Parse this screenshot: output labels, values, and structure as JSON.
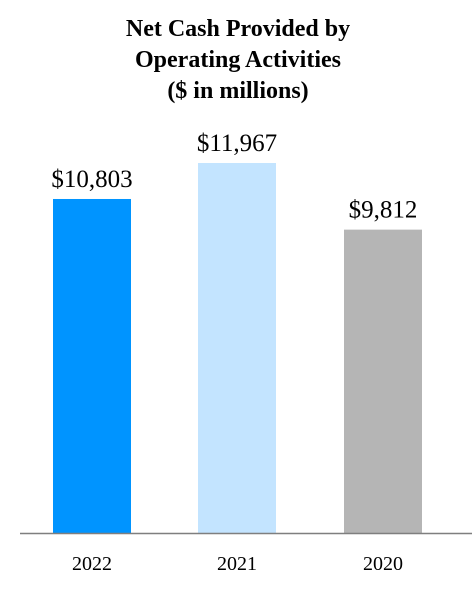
{
  "chart_data": {
    "type": "bar",
    "title_lines": [
      "Net Cash Provided by",
      "Operating Activities",
      "($ in millions)"
    ],
    "categories": [
      "2022",
      "2021",
      "2020"
    ],
    "values": [
      10803,
      11967,
      9812
    ],
    "value_labels": [
      "$10,803",
      "$11,967",
      "$9,812"
    ],
    "colors": [
      "#0094FF",
      "#C3E4FF",
      "#B5B5B5"
    ],
    "ylim": [
      0,
      11967
    ],
    "grid": false,
    "legend": "none",
    "xlabel": "",
    "ylabel": ""
  }
}
